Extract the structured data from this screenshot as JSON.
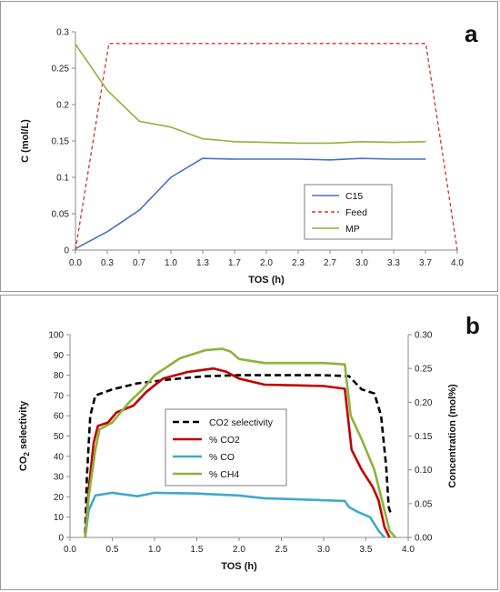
{
  "chart_data": [
    {
      "type": "line",
      "panel_label": "a",
      "title": "",
      "xlabel": "TOS (h)",
      "ylabel": "C (mol/L)",
      "xlim": [
        0,
        4.0
      ],
      "ylim": [
        0,
        0.3
      ],
      "x_ticks": [
        "0.0",
        "0.3",
        "0.7",
        "1.0",
        "1.3",
        "1.7",
        "2.0",
        "2.3",
        "2.7",
        "3.0",
        "3.3",
        "3.7",
        "4.0"
      ],
      "y_ticks": [
        "0",
        "0.05",
        "0.1",
        "0.15",
        "0.2",
        "0.25",
        "0.3"
      ],
      "grid": false,
      "legend_placement": "bottom-right",
      "series": [
        {
          "name": "C15",
          "color": "#4472c4",
          "style": "solid",
          "points": [
            [
              0.0,
              0.002
            ],
            [
              0.33,
              0.025
            ],
            [
              0.67,
              0.055
            ],
            [
              1.0,
              0.1
            ],
            [
              1.33,
              0.126
            ],
            [
              1.67,
              0.125
            ],
            [
              2.0,
              0.125
            ],
            [
              2.33,
              0.125
            ],
            [
              2.67,
              0.124
            ],
            [
              3.0,
              0.126
            ],
            [
              3.33,
              0.125
            ],
            [
              3.67,
              0.125
            ]
          ]
        },
        {
          "name": "Feed",
          "color": "#d9312a",
          "style": "dashed",
          "points": [
            [
              0.0,
              0.0
            ],
            [
              0.35,
              0.284
            ],
            [
              3.67,
              0.284
            ],
            [
              4.0,
              0.0
            ]
          ]
        },
        {
          "name": "MP",
          "color": "#8cb33b",
          "style": "solid",
          "points": [
            [
              0.0,
              0.283
            ],
            [
              0.33,
              0.22
            ],
            [
              0.67,
              0.177
            ],
            [
              1.0,
              0.169
            ],
            [
              1.33,
              0.153
            ],
            [
              1.67,
              0.149
            ],
            [
              2.0,
              0.148
            ],
            [
              2.33,
              0.147
            ],
            [
              2.67,
              0.147
            ],
            [
              3.0,
              0.149
            ],
            [
              3.33,
              0.148
            ],
            [
              3.67,
              0.149
            ]
          ]
        }
      ]
    },
    {
      "type": "line",
      "panel_label": "b",
      "title": "",
      "xlabel": "TOS (h)",
      "ylabel_left": "CO2 selectivity",
      "ylabel_right": "Concentration (mol%)",
      "xlim": [
        0,
        4.0
      ],
      "ylim_left": [
        0,
        100
      ],
      "ylim_right": [
        0,
        0.3
      ],
      "x_ticks": [
        "0.0",
        "0.5",
        "1.0",
        "1.5",
        "2.0",
        "2.5",
        "3.0",
        "3.5",
        "4.0"
      ],
      "y_ticks_left": [
        "0",
        "10",
        "20",
        "30",
        "40",
        "50",
        "60",
        "70",
        "80",
        "90",
        "100"
      ],
      "y_ticks_right": [
        "0.00",
        "0.05",
        "0.10",
        "0.15",
        "0.20",
        "0.25",
        "0.30"
      ],
      "grid": false,
      "legend_placement": "center-left",
      "series": [
        {
          "name": "CO2 selectivity",
          "color": "#000000",
          "style": "dashed",
          "axis": "left",
          "points": [
            [
              0.18,
              2
            ],
            [
              0.2,
              30
            ],
            [
              0.24,
              60
            ],
            [
              0.3,
              70
            ],
            [
              0.5,
              73
            ],
            [
              0.8,
              76
            ],
            [
              1.2,
              78
            ],
            [
              1.6,
              79.5
            ],
            [
              2.0,
              80
            ],
            [
              2.6,
              80
            ],
            [
              3.0,
              80
            ],
            [
              3.3,
              79.5
            ],
            [
              3.45,
              73
            ],
            [
              3.6,
              71
            ],
            [
              3.68,
              60
            ],
            [
              3.74,
              35
            ],
            [
              3.77,
              15
            ],
            [
              3.8,
              11
            ]
          ]
        },
        {
          "name": "% CO2",
          "color": "#c00000",
          "style": "solid",
          "axis": "right",
          "points": [
            [
              0.18,
              0.0
            ],
            [
              0.22,
              0.07
            ],
            [
              0.28,
              0.14
            ],
            [
              0.33,
              0.165
            ],
            [
              0.45,
              0.17
            ],
            [
              0.55,
              0.185
            ],
            [
              0.75,
              0.195
            ],
            [
              0.9,
              0.215
            ],
            [
              1.1,
              0.235
            ],
            [
              1.4,
              0.245
            ],
            [
              1.7,
              0.25
            ],
            [
              1.85,
              0.245
            ],
            [
              2.0,
              0.235
            ],
            [
              2.3,
              0.226
            ],
            [
              2.7,
              0.225
            ],
            [
              3.0,
              0.224
            ],
            [
              3.25,
              0.22
            ],
            [
              3.33,
              0.13
            ],
            [
              3.45,
              0.1
            ],
            [
              3.58,
              0.075
            ],
            [
              3.65,
              0.055
            ],
            [
              3.72,
              0.015
            ],
            [
              3.78,
              0.0
            ]
          ]
        },
        {
          "name": "% CO",
          "color": "#3fa9cc",
          "style": "solid",
          "axis": "right",
          "points": [
            [
              0.18,
              0.0
            ],
            [
              0.22,
              0.04
            ],
            [
              0.3,
              0.062
            ],
            [
              0.5,
              0.066
            ],
            [
              0.8,
              0.061
            ],
            [
              1.0,
              0.066
            ],
            [
              1.5,
              0.065
            ],
            [
              2.0,
              0.062
            ],
            [
              2.3,
              0.058
            ],
            [
              2.8,
              0.056
            ],
            [
              3.25,
              0.054
            ],
            [
              3.3,
              0.045
            ],
            [
              3.4,
              0.038
            ],
            [
              3.55,
              0.03
            ],
            [
              3.65,
              0.01
            ],
            [
              3.72,
              0.0
            ]
          ]
        },
        {
          "name": "% CH4",
          "color": "#8cb33b",
          "style": "solid",
          "axis": "right",
          "points": [
            [
              0.18,
              0.0
            ],
            [
              0.22,
              0.06
            ],
            [
              0.3,
              0.13
            ],
            [
              0.35,
              0.16
            ],
            [
              0.5,
              0.17
            ],
            [
              0.7,
              0.2
            ],
            [
              0.85,
              0.218
            ],
            [
              1.0,
              0.24
            ],
            [
              1.3,
              0.265
            ],
            [
              1.6,
              0.277
            ],
            [
              1.8,
              0.279
            ],
            [
              1.9,
              0.275
            ],
            [
              2.0,
              0.264
            ],
            [
              2.3,
              0.258
            ],
            [
              2.7,
              0.258
            ],
            [
              3.0,
              0.258
            ],
            [
              3.25,
              0.256
            ],
            [
              3.32,
              0.18
            ],
            [
              3.45,
              0.145
            ],
            [
              3.6,
              0.1
            ],
            [
              3.7,
              0.05
            ],
            [
              3.78,
              0.01
            ],
            [
              3.85,
              0.0
            ]
          ]
        }
      ]
    }
  ]
}
